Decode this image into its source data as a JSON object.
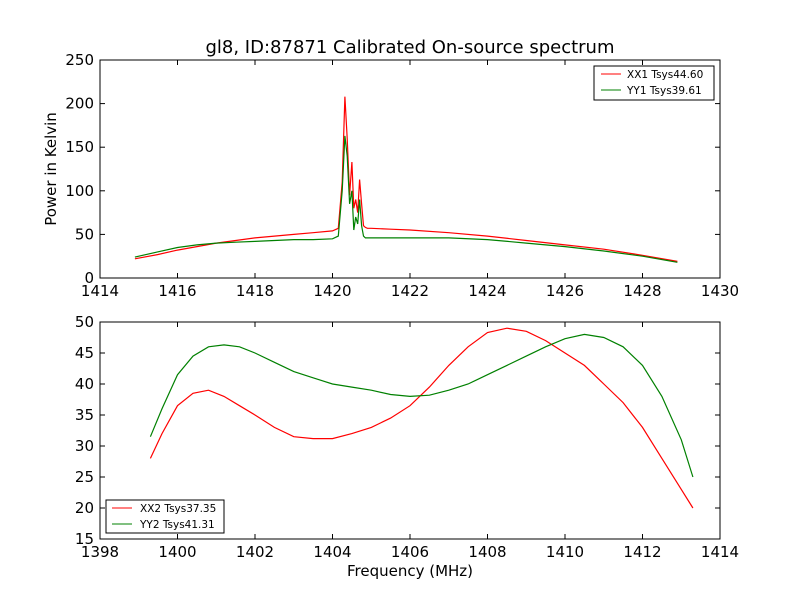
{
  "chart_data": [
    {
      "type": "line",
      "title": "gl8, ID:87871 Calibrated On-source spectrum",
      "xlabel": "",
      "ylabel": "Power in Kelvin",
      "xlim": [
        1414,
        1430
      ],
      "ylim": [
        0,
        250
      ],
      "xticks": [
        1414,
        1416,
        1418,
        1420,
        1422,
        1424,
        1426,
        1428,
        1430
      ],
      "yticks": [
        0,
        50,
        100,
        150,
        200,
        250
      ],
      "legend": "top-right",
      "grid": false,
      "series": [
        {
          "name": "XX1 Tsys44.60",
          "color": "#ff0000",
          "x": [
            1414.9,
            1415.5,
            1416.0,
            1416.5,
            1417.0,
            1417.5,
            1418.0,
            1418.5,
            1419.0,
            1419.5,
            1420.0,
            1420.15,
            1420.25,
            1420.32,
            1420.38,
            1420.44,
            1420.5,
            1420.55,
            1420.6,
            1420.65,
            1420.7,
            1420.75,
            1420.8,
            1420.85,
            1420.9,
            1421.0,
            1421.5,
            1422.0,
            1423.0,
            1424.0,
            1425.0,
            1426.0,
            1427.0,
            1428.0,
            1428.9
          ],
          "y": [
            22,
            27,
            32,
            36,
            40,
            43,
            46,
            48,
            50,
            52,
            54,
            57,
            110,
            208,
            160,
            95,
            133,
            80,
            90,
            75,
            113,
            85,
            60,
            58,
            57,
            57,
            56,
            55,
            52,
            48,
            43,
            38,
            33,
            26,
            19
          ]
        },
        {
          "name": "YY1 Tsys39.61",
          "color": "#008000",
          "x": [
            1414.9,
            1415.5,
            1416.0,
            1416.5,
            1417.0,
            1417.5,
            1418.0,
            1418.5,
            1419.0,
            1419.5,
            1420.0,
            1420.15,
            1420.25,
            1420.32,
            1420.38,
            1420.44,
            1420.5,
            1420.55,
            1420.6,
            1420.65,
            1420.7,
            1420.75,
            1420.8,
            1420.85,
            1420.9,
            1421.0,
            1421.5,
            1422.0,
            1423.0,
            1424.0,
            1425.0,
            1426.0,
            1427.0,
            1428.0,
            1428.9
          ],
          "y": [
            24,
            30,
            35,
            38,
            40,
            41,
            42,
            43,
            44,
            44,
            45,
            48,
            100,
            163,
            140,
            85,
            100,
            55,
            70,
            62,
            90,
            60,
            48,
            46,
            46,
            46,
            46,
            46,
            46,
            44,
            40,
            36,
            31,
            25,
            18
          ]
        }
      ]
    },
    {
      "type": "line",
      "title": "",
      "xlabel": "Frequency (MHz)",
      "ylabel": "",
      "xlim": [
        1398,
        1414
      ],
      "ylim": [
        15,
        50
      ],
      "xticks": [
        1398,
        1400,
        1402,
        1404,
        1406,
        1408,
        1410,
        1412,
        1414
      ],
      "yticks": [
        15,
        20,
        25,
        30,
        35,
        40,
        45,
        50
      ],
      "legend": "bottom-left",
      "grid": false,
      "series": [
        {
          "name": "XX2 Tsys37.35",
          "color": "#ff0000",
          "x": [
            1399.3,
            1399.6,
            1400.0,
            1400.4,
            1400.8,
            1401.2,
            1401.6,
            1402.0,
            1402.5,
            1403.0,
            1403.5,
            1404.0,
            1404.5,
            1405.0,
            1405.5,
            1406.0,
            1406.5,
            1407.0,
            1407.5,
            1408.0,
            1408.5,
            1409.0,
            1409.5,
            1410.0,
            1410.5,
            1411.0,
            1411.5,
            1412.0,
            1412.5,
            1413.0,
            1413.3
          ],
          "y": [
            28,
            32,
            36.5,
            38.5,
            39,
            38,
            36.5,
            35,
            33,
            31.5,
            31.2,
            31.2,
            32,
            33,
            34.5,
            36.5,
            39.5,
            43,
            46,
            48.3,
            49,
            48.5,
            47,
            45,
            43,
            40,
            37,
            33,
            28,
            23,
            20
          ]
        },
        {
          "name": "YY2 Tsys41.31",
          "color": "#008000",
          "x": [
            1399.3,
            1399.6,
            1400.0,
            1400.4,
            1400.8,
            1401.2,
            1401.6,
            1402.0,
            1402.5,
            1403.0,
            1403.5,
            1404.0,
            1404.5,
            1405.0,
            1405.5,
            1406.0,
            1406.5,
            1407.0,
            1407.5,
            1408.0,
            1408.5,
            1409.0,
            1409.5,
            1410.0,
            1410.5,
            1411.0,
            1411.5,
            1412.0,
            1412.5,
            1413.0,
            1413.3
          ],
          "y": [
            31.5,
            36,
            41.5,
            44.5,
            46,
            46.3,
            46,
            45,
            43.5,
            42,
            41,
            40,
            39.5,
            39,
            38.3,
            38,
            38.2,
            39,
            40,
            41.5,
            43,
            44.5,
            46,
            47.3,
            48,
            47.5,
            46,
            43,
            38,
            31,
            25
          ]
        }
      ]
    }
  ]
}
